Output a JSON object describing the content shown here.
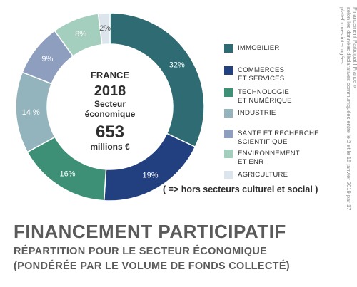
{
  "chart_data": {
    "type": "pie",
    "title": "FINANCEMENT PARTICIPATIF",
    "subtitle_line1": "RÉPARTITION POUR LE SECTEUR ÉCONOMIQUE",
    "subtitle_line2": "(PONDÉRÉE PAR LE VOLUME DE FONDS COLLECTÉ)",
    "center": {
      "country": "FRANCE",
      "year": "2018",
      "sector": "Secteur\néconomique",
      "amount": "653",
      "unit": "millions €"
    },
    "legend_position": "right",
    "slices": [
      {
        "name": "IMMOBILIER",
        "value": 32,
        "label": "32%",
        "color": "#2e6b73"
      },
      {
        "name": "COMMERCES\nET SERVICES",
        "value": 19,
        "label": "19%",
        "color": "#22407f"
      },
      {
        "name": "TECHNOLOGIE\nET NUMÉRIQUE",
        "value": 16,
        "label": "16%",
        "color": "#3d8f76"
      },
      {
        "name": "INDUSTRIE",
        "value": 14,
        "label": "14 %",
        "color": "#93b3bd"
      },
      {
        "name": "SANTÉ ET RECHERCHE\nSCIENTIFIQUE",
        "value": 9,
        "label": "9%",
        "color": "#8d9ebf"
      },
      {
        "name": "ENVIRONNEMENT\nET ENR",
        "value": 8,
        "label": "8%",
        "color": "#a4cfbf"
      },
      {
        "name": "AGRICULTURE",
        "value": 2,
        "label": "2%",
        "color": "#dde5ec"
      }
    ],
    "note": "( =>  hors secteurs culturel et social )"
  },
  "source": "D'après « Baromètre du crowdfunding en France 2018 réalisé par KPMG (2019) pour Financement Participatif France »\nselon les données déclaratives communiquées entre le 2 et le 15 janvier 2019  par 17 plateformes interrogées"
}
